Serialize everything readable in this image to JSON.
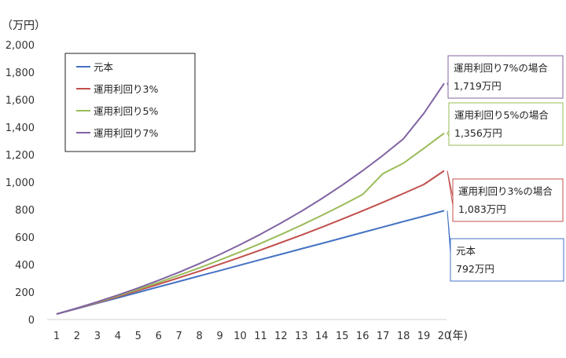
{
  "chart_data": {
    "type": "line",
    "title": "",
    "y_unit": "（万円）",
    "x_unit": "(年)",
    "x": [
      1,
      2,
      3,
      4,
      5,
      6,
      7,
      8,
      9,
      10,
      11,
      12,
      13,
      14,
      15,
      16,
      17,
      18,
      19,
      20
    ],
    "ylim": [
      0,
      2000
    ],
    "ytick_labels": [
      "0",
      "200",
      "400",
      "600",
      "800",
      "1,000",
      "1,200",
      "1,400",
      "1,600",
      "1,800",
      "2,000"
    ],
    "grid": false,
    "legend": "top-left",
    "series": [
      {
        "name": "元本",
        "color": "#4472c4",
        "values": [
          40,
          79,
          119,
          158,
          198,
          238,
          277,
          317,
          356,
          396,
          436,
          475,
          515,
          554,
          594,
          634,
          673,
          713,
          752,
          792
        ]
      },
      {
        "name": "運用利回り3%",
        "color": "#c0504d",
        "values": [
          40,
          81,
          123,
          166,
          211,
          257,
          304,
          352,
          402,
          453,
          506,
          560,
          615,
          672,
          731,
          791,
          853,
          917,
          983,
          1083
        ]
      },
      {
        "name": "運用利回り5%",
        "color": "#9bbb59",
        "values": [
          40,
          82,
          126,
          172,
          220,
          270,
          322,
          376,
          433,
          492,
          554,
          619,
          687,
          758,
          832,
          910,
          1062,
          1138,
          1245,
          1356
        ]
      },
      {
        "name": "運用利回り7%",
        "color": "#8064a2",
        "values": [
          40,
          83,
          129,
          178,
          230,
          285,
          344,
          407,
          474,
          545,
          621,
          702,
          788,
          880,
          978,
          1083,
          1195,
          1315,
          1500,
          1719
        ]
      }
    ],
    "callouts": [
      {
        "series": 3,
        "line1": "運用利回り7%の場合",
        "line2": "1,719万円",
        "border": "#8064a2"
      },
      {
        "series": 2,
        "line1": "運用利回り5%の場合",
        "line2": "1,356万円",
        "border": "#9bbb59"
      },
      {
        "series": 1,
        "line1": "運用利回り3%の場合",
        "line2": "1,083万円",
        "border": "#c0504d"
      },
      {
        "series": 0,
        "line1": "元本",
        "line2": "792万円",
        "border": "#4472c4"
      }
    ]
  }
}
